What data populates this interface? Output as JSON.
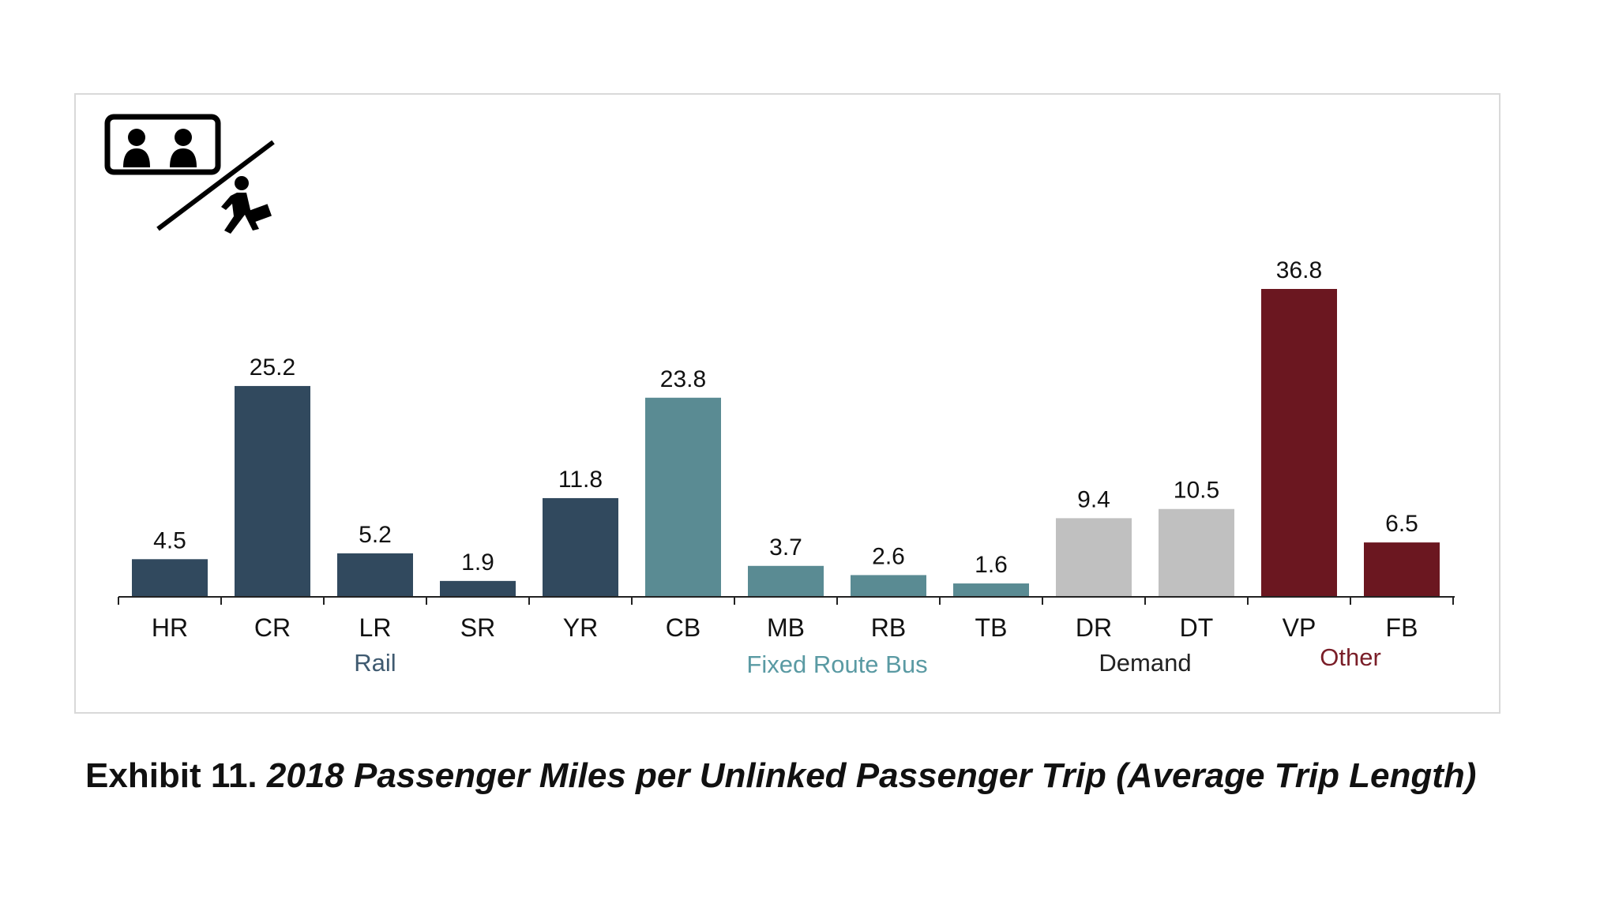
{
  "caption": {
    "label": "Exhibit 11.",
    "title": "2018 Passenger Miles per Unlinked Passenger Trip (Average Trip Length)"
  },
  "icon": "passengers-per-trip-icon",
  "chart_data": {
    "type": "bar",
    "title": "",
    "xlabel": "",
    "ylabel": "",
    "ylim": [
      0,
      40
    ],
    "grid": false,
    "categories": [
      "HR",
      "CR",
      "LR",
      "SR",
      "YR",
      "CB",
      "MB",
      "RB",
      "TB",
      "DR",
      "DT",
      "VP",
      "FB"
    ],
    "values": [
      4.5,
      25.2,
      5.2,
      1.9,
      11.8,
      23.8,
      3.7,
      2.6,
      1.6,
      9.4,
      10.5,
      36.8,
      6.5
    ],
    "value_labels": [
      "4.5",
      "25.2",
      "5.2",
      "1.9",
      "11.8",
      "23.8",
      "3.7",
      "2.6",
      "1.6",
      "9.4",
      "10.5",
      "36.8",
      "6.5"
    ],
    "groups": [
      {
        "name": "Rail",
        "start": 0,
        "end": 4,
        "color": "#31495e",
        "label_color": "#3f5a70"
      },
      {
        "name": "Fixed Route Bus",
        "start": 5,
        "end": 8,
        "color": "#5a8b93",
        "label_color": "#5a9aa3"
      },
      {
        "name": "Demand",
        "start": 9,
        "end": 10,
        "color": "#c0c0c0",
        "label_color": "#222222"
      },
      {
        "name": "Other",
        "start": 11,
        "end": 12,
        "color": "#6b1720",
        "label_color": "#7a1e28"
      }
    ]
  }
}
